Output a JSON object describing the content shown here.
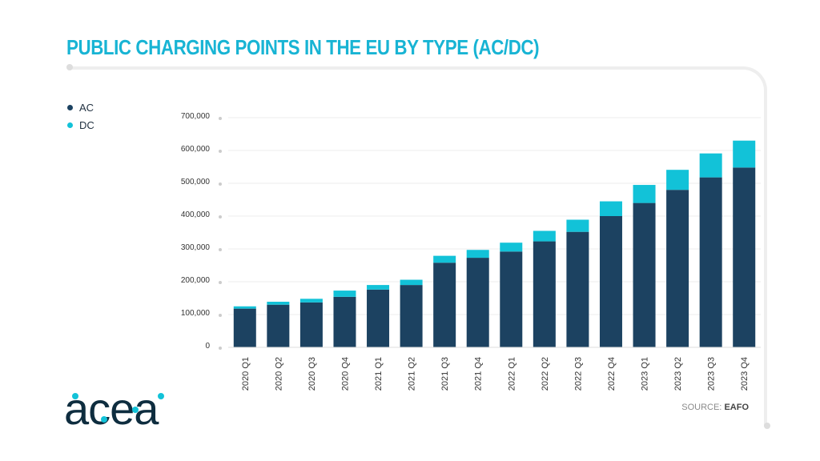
{
  "title": "PUBLIC CHARGING POINTS IN THE EU BY TYPE (AC/DC)",
  "source_label": "SOURCE:",
  "source_name": "EAFO",
  "logo_text": "acea",
  "colors": {
    "ac": "#1c4261",
    "dc": "#12c2d8",
    "title": "#18b4d4"
  },
  "chart_data": {
    "type": "bar",
    "stacked": true,
    "categories": [
      "2020 Q1",
      "2020 Q2",
      "2020 Q3",
      "2020 Q4",
      "2021 Q1",
      "2021 Q2",
      "2021 Q3",
      "2021 Q4",
      "2022 Q1",
      "2022 Q2",
      "2022 Q3",
      "2022 Q4",
      "2023 Q1",
      "2023 Q2",
      "2023 Q3",
      "2023 Q4"
    ],
    "series": [
      {
        "name": "AC",
        "color": "#1c4261",
        "values": [
          118000,
          130000,
          137000,
          154000,
          176000,
          190000,
          258000,
          273000,
          292000,
          323000,
          352000,
          400000,
          440000,
          480000,
          518000,
          548000
        ]
      },
      {
        "name": "DC",
        "color": "#12c2d8",
        "values": [
          7000,
          9000,
          11000,
          19000,
          14000,
          16000,
          21000,
          24000,
          27000,
          32000,
          37000,
          45000,
          55000,
          61000,
          73000,
          82000
        ]
      }
    ],
    "ylim": [
      0,
      700000
    ],
    "yticks": [
      0,
      100000,
      200000,
      300000,
      400000,
      500000,
      600000,
      700000
    ],
    "ytick_labels": [
      "0",
      "100,000",
      "200,000",
      "300,000",
      "400,000",
      "500,000",
      "600,000",
      "700,000"
    ],
    "grid": true,
    "legend_position": "top-left"
  }
}
